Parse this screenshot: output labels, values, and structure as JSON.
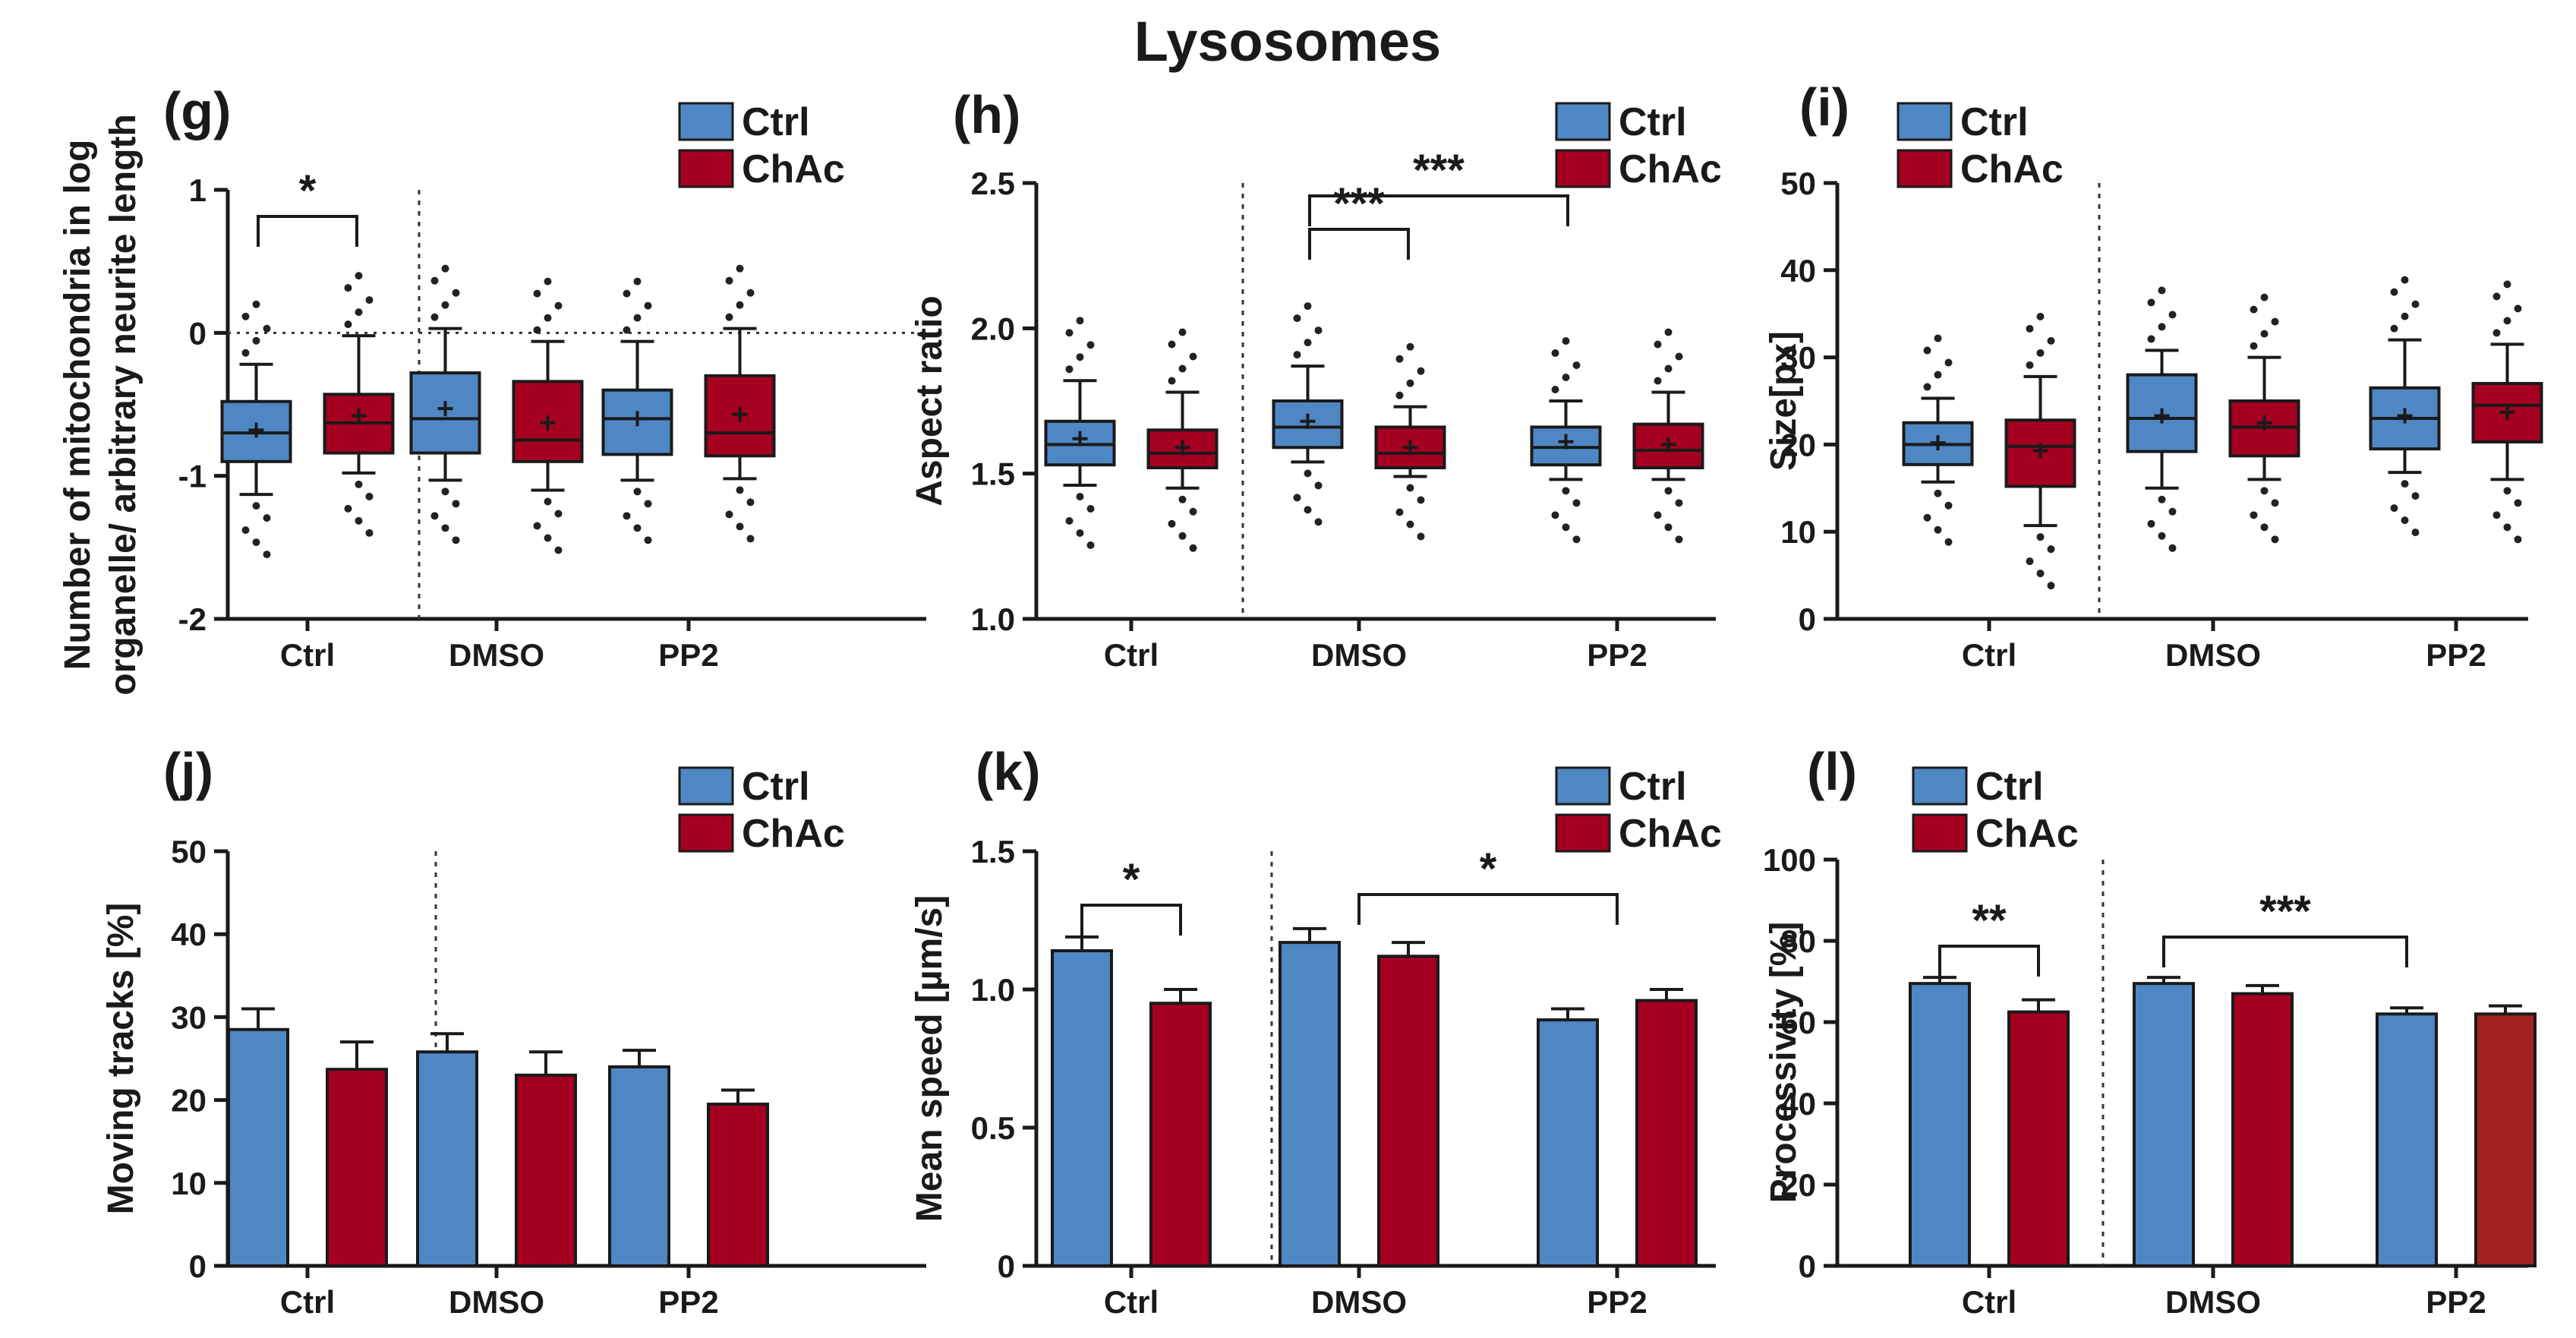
{
  "figure_title": "Lysosomes",
  "colors": {
    "ctrl": "#4f87c4",
    "chac": "#a50022",
    "chac_alt": "#a2221f",
    "axis": "#1a1a1a"
  },
  "chart_data": [
    {
      "panel": "(g)",
      "type": "box",
      "ylabel": [
        "Number of mitochondria in log",
        "organelle/ arbitrary neurite length"
      ],
      "ylim": [
        -2,
        1
      ],
      "yticks": [
        "1",
        "0",
        "-1",
        "-2"
      ],
      "categories": [
        "Ctrl",
        "DMSO",
        "PP2"
      ],
      "reference_line": 0,
      "legend": [
        "Ctrl",
        "ChAc"
      ],
      "series": [
        {
          "name": "Ctrl",
          "boxes": [
            {
              "q1": -0.9,
              "median": -0.7,
              "q3": -0.48,
              "mean": -0.68,
              "wlo": -1.13,
              "whi": -0.22
            },
            {
              "q1": -0.84,
              "median": -0.6,
              "q3": -0.28,
              "mean": -0.53,
              "wlo": -1.03,
              "whi": 0.03
            },
            {
              "q1": -0.85,
              "median": -0.6,
              "q3": -0.4,
              "mean": -0.6,
              "wlo": -1.03,
              "whi": -0.06
            }
          ]
        },
        {
          "name": "ChAc",
          "boxes": [
            {
              "q1": -0.84,
              "median": -0.63,
              "q3": -0.43,
              "mean": -0.58,
              "wlo": -0.98,
              "whi": -0.02
            },
            {
              "q1": -0.9,
              "median": -0.75,
              "q3": -0.34,
              "mean": -0.63,
              "wlo": -1.1,
              "whi": -0.06
            },
            {
              "q1": -0.86,
              "median": -0.7,
              "q3": -0.3,
              "mean": -0.57,
              "wlo": -1.02,
              "whi": 0.03
            }
          ]
        }
      ],
      "significance": [
        {
          "label": "*",
          "from": "Ctrl-Ctrl",
          "to": "Ctrl-ChAc"
        }
      ]
    },
    {
      "panel": "(h)",
      "type": "box",
      "ylabel": [
        "Aspect ratio"
      ],
      "ylim": [
        1.0,
        2.5
      ],
      "yticks": [
        "2.5",
        "2.0",
        "1.5",
        "1.0"
      ],
      "categories": [
        "Ctrl",
        "DMSO",
        "PP2"
      ],
      "legend": [
        "Ctrl",
        "ChAc"
      ],
      "series": [
        {
          "name": "Ctrl",
          "boxes": [
            {
              "q1": 1.53,
              "median": 1.6,
              "q3": 1.68,
              "mean": 1.62,
              "wlo": 1.46,
              "whi": 1.82
            },
            {
              "q1": 1.59,
              "median": 1.66,
              "q3": 1.75,
              "mean": 1.68,
              "wlo": 1.54,
              "whi": 1.87
            },
            {
              "q1": 1.53,
              "median": 1.59,
              "q3": 1.66,
              "mean": 1.61,
              "wlo": 1.48,
              "whi": 1.75
            }
          ]
        },
        {
          "name": "ChAc",
          "boxes": [
            {
              "q1": 1.52,
              "median": 1.57,
              "q3": 1.65,
              "mean": 1.59,
              "wlo": 1.45,
              "whi": 1.78
            },
            {
              "q1": 1.52,
              "median": 1.57,
              "q3": 1.66,
              "mean": 1.59,
              "wlo": 1.49,
              "whi": 1.73
            },
            {
              "q1": 1.52,
              "median": 1.58,
              "q3": 1.67,
              "mean": 1.6,
              "wlo": 1.48,
              "whi": 1.78
            }
          ]
        }
      ],
      "significance": [
        {
          "label": "***",
          "from": "DMSO-Ctrl",
          "to": "DMSO-ChAc"
        },
        {
          "label": "***",
          "from": "DMSO-Ctrl",
          "to": "PP2-Ctrl"
        }
      ]
    },
    {
      "panel": "(i)",
      "type": "box",
      "ylabel": [
        "Size[px]"
      ],
      "ylim": [
        0,
        50
      ],
      "yticks": [
        "50",
        "40",
        "30",
        "20",
        "10",
        "0"
      ],
      "categories": [
        "Ctrl",
        "DMSO",
        "PP2"
      ],
      "legend": [
        "Ctrl",
        "ChAc"
      ],
      "series": [
        {
          "name": "Ctrl",
          "boxes": [
            {
              "q1": 17.7,
              "median": 20,
              "q3": 22.5,
              "mean": 20.2,
              "wlo": 15.7,
              "whi": 25.3
            },
            {
              "q1": 19.2,
              "median": 23,
              "q3": 28,
              "mean": 23.3,
              "wlo": 15,
              "whi": 30.8
            },
            {
              "q1": 19.5,
              "median": 23,
              "q3": 26.5,
              "mean": 23.3,
              "wlo": 16.8,
              "whi": 32
            }
          ]
        },
        {
          "name": "ChAc",
          "boxes": [
            {
              "q1": 15.2,
              "median": 19.8,
              "q3": 22.8,
              "mean": 19.3,
              "wlo": 10.7,
              "whi": 27.8
            },
            {
              "q1": 18.7,
              "median": 22,
              "q3": 25,
              "mean": 22.5,
              "wlo": 16,
              "whi": 30
            },
            {
              "q1": 20.3,
              "median": 24.5,
              "q3": 27,
              "mean": 23.7,
              "wlo": 16,
              "whi": 31.5
            }
          ]
        }
      ],
      "significance": []
    },
    {
      "panel": "(j)",
      "type": "bar",
      "ylabel": [
        "Moving tracks [%]"
      ],
      "ylim": [
        0,
        50
      ],
      "yticks": [
        "50",
        "40",
        "30",
        "20",
        "10",
        "0"
      ],
      "categories": [
        "Ctrl",
        "DMSO",
        "PP2"
      ],
      "legend": [
        "Ctrl",
        "ChAc"
      ],
      "series": [
        {
          "name": "Ctrl",
          "values": [
            28.5,
            25.8,
            24
          ],
          "errors": [
            2.5,
            2.2,
            2.0
          ]
        },
        {
          "name": "ChAc",
          "values": [
            23.7,
            23,
            19.5
          ],
          "errors": [
            3.3,
            2.8,
            1.7
          ]
        }
      ],
      "significance": []
    },
    {
      "panel": "(k)",
      "type": "bar",
      "ylabel": [
        "Mean speed [µm/s]"
      ],
      "ylim": [
        0,
        1.5
      ],
      "yticks": [
        "1.5",
        "1.0",
        "0.5",
        "0"
      ],
      "categories": [
        "Ctrl",
        "DMSO",
        "PP2"
      ],
      "legend": [
        "Ctrl",
        "ChAc"
      ],
      "series": [
        {
          "name": "Ctrl",
          "values": [
            1.14,
            1.17,
            0.89
          ],
          "errors": [
            0.05,
            0.05,
            0.04
          ]
        },
        {
          "name": "ChAc",
          "values": [
            0.95,
            1.12,
            0.96
          ],
          "errors": [
            0.05,
            0.05,
            0.04
          ]
        }
      ],
      "significance": [
        {
          "label": "*",
          "from": "Ctrl-Ctrl",
          "to": "Ctrl-ChAc"
        },
        {
          "label": "*",
          "from": "DMSO",
          "to": "PP2"
        }
      ]
    },
    {
      "panel": "(l)",
      "type": "bar",
      "ylabel": [
        "Processivity [%]"
      ],
      "ylim": [
        0,
        100
      ],
      "yticks": [
        "100",
        "80",
        "60",
        "40",
        "20",
        "0"
      ],
      "categories": [
        "Ctrl",
        "DMSO",
        "PP2"
      ],
      "legend": [
        "Ctrl",
        "ChAc"
      ],
      "series": [
        {
          "name": "Ctrl",
          "values": [
            69.5,
            69.5,
            62
          ],
          "errors": [
            1.5,
            1.5,
            1.5
          ]
        },
        {
          "name": "ChAc",
          "values": [
            62.5,
            67,
            62
          ],
          "errors": [
            3,
            2,
            2
          ]
        }
      ],
      "significance": [
        {
          "label": "**",
          "from": "Ctrl-Ctrl",
          "to": "Ctrl-ChAc"
        },
        {
          "label": "***",
          "from": "DMSO-Ctrl",
          "to": "PP2-Ctrl"
        }
      ]
    }
  ]
}
